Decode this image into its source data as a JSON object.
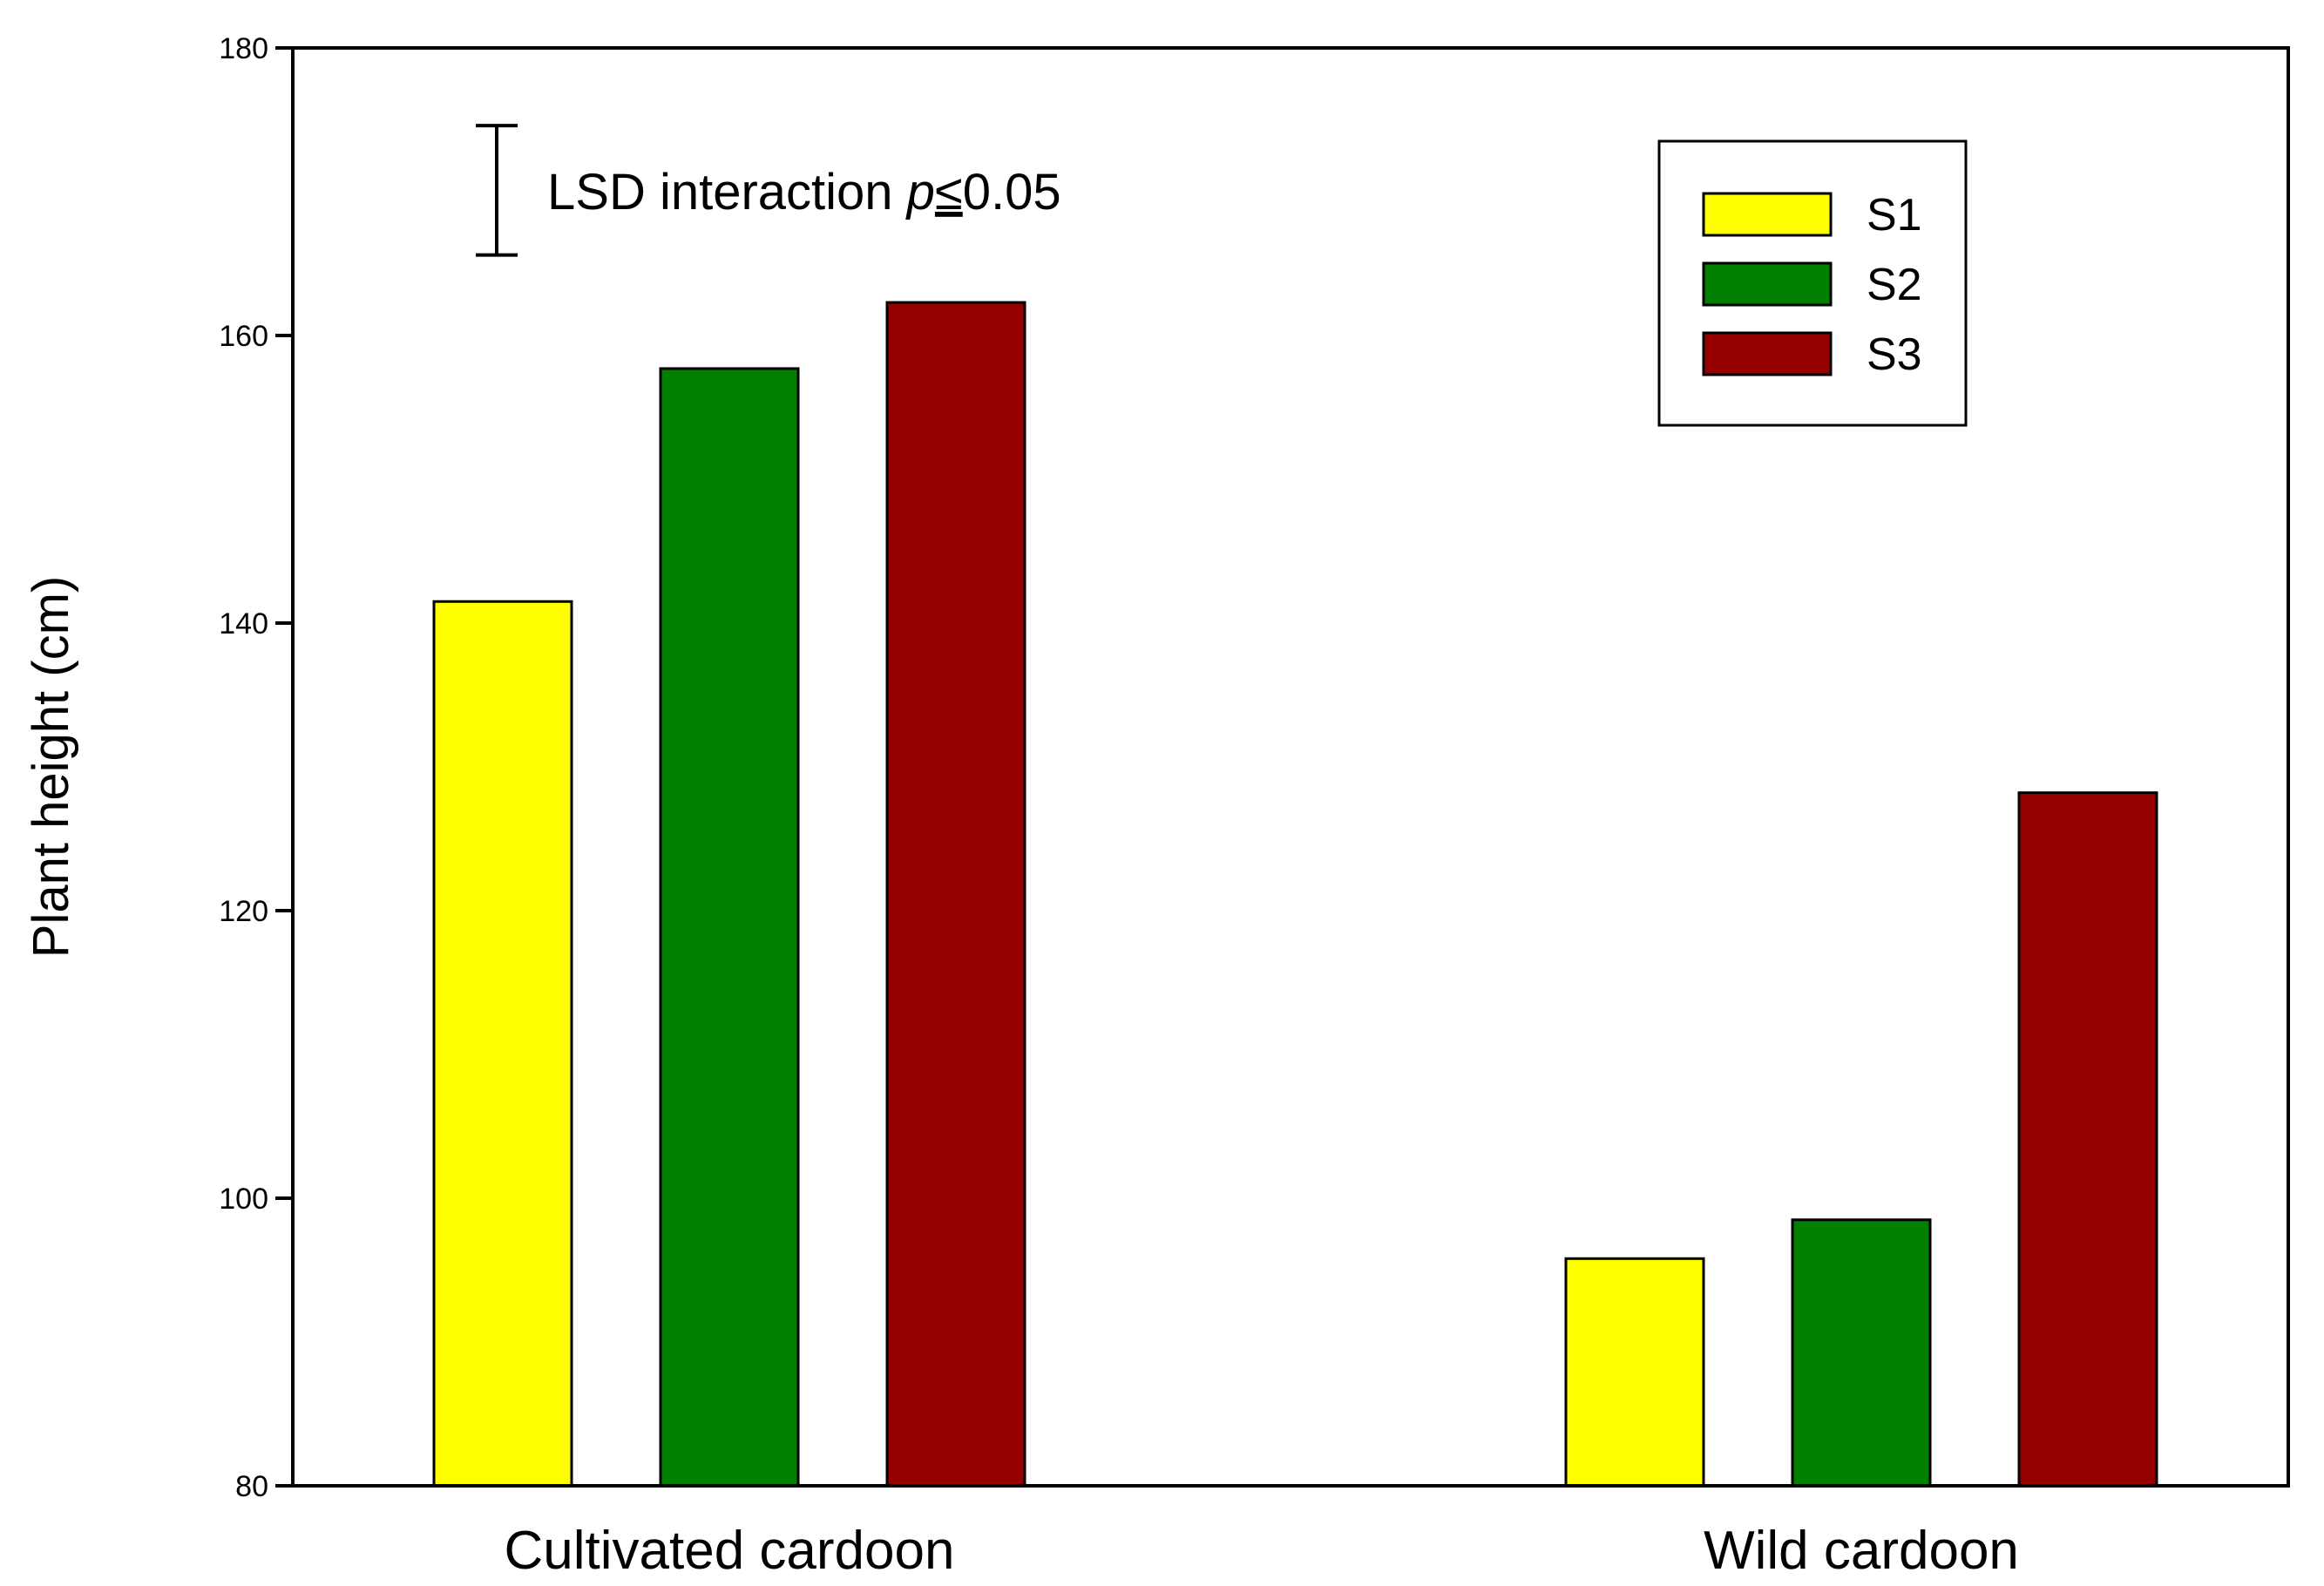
{
  "chart_data": {
    "type": "bar",
    "title": "",
    "xlabel": "",
    "ylabel": "Plant height (cm)",
    "ylim": [
      80,
      180
    ],
    "yticks": [
      80,
      100,
      120,
      140,
      160,
      180
    ],
    "categories": [
      "Cultivated cardoon",
      "Wild cardoon"
    ],
    "series": [
      {
        "name": "S1",
        "color": "#ffff00",
        "values": [
          141.5,
          95.8
        ]
      },
      {
        "name": "S2",
        "color": "#007f00",
        "values": [
          157.7,
          98.5
        ]
      },
      {
        "name": "S3",
        "color": "#960000",
        "values": [
          162.3,
          128.2
        ]
      }
    ],
    "legend_position": "top-right",
    "grid": false,
    "annotation": {
      "text_prefix": "LSD interaction ",
      "text_italic": "p",
      "text_symbol": "≤",
      "text_suffix": "0.05",
      "lsd_range": [
        165.6,
        174.6
      ]
    }
  }
}
